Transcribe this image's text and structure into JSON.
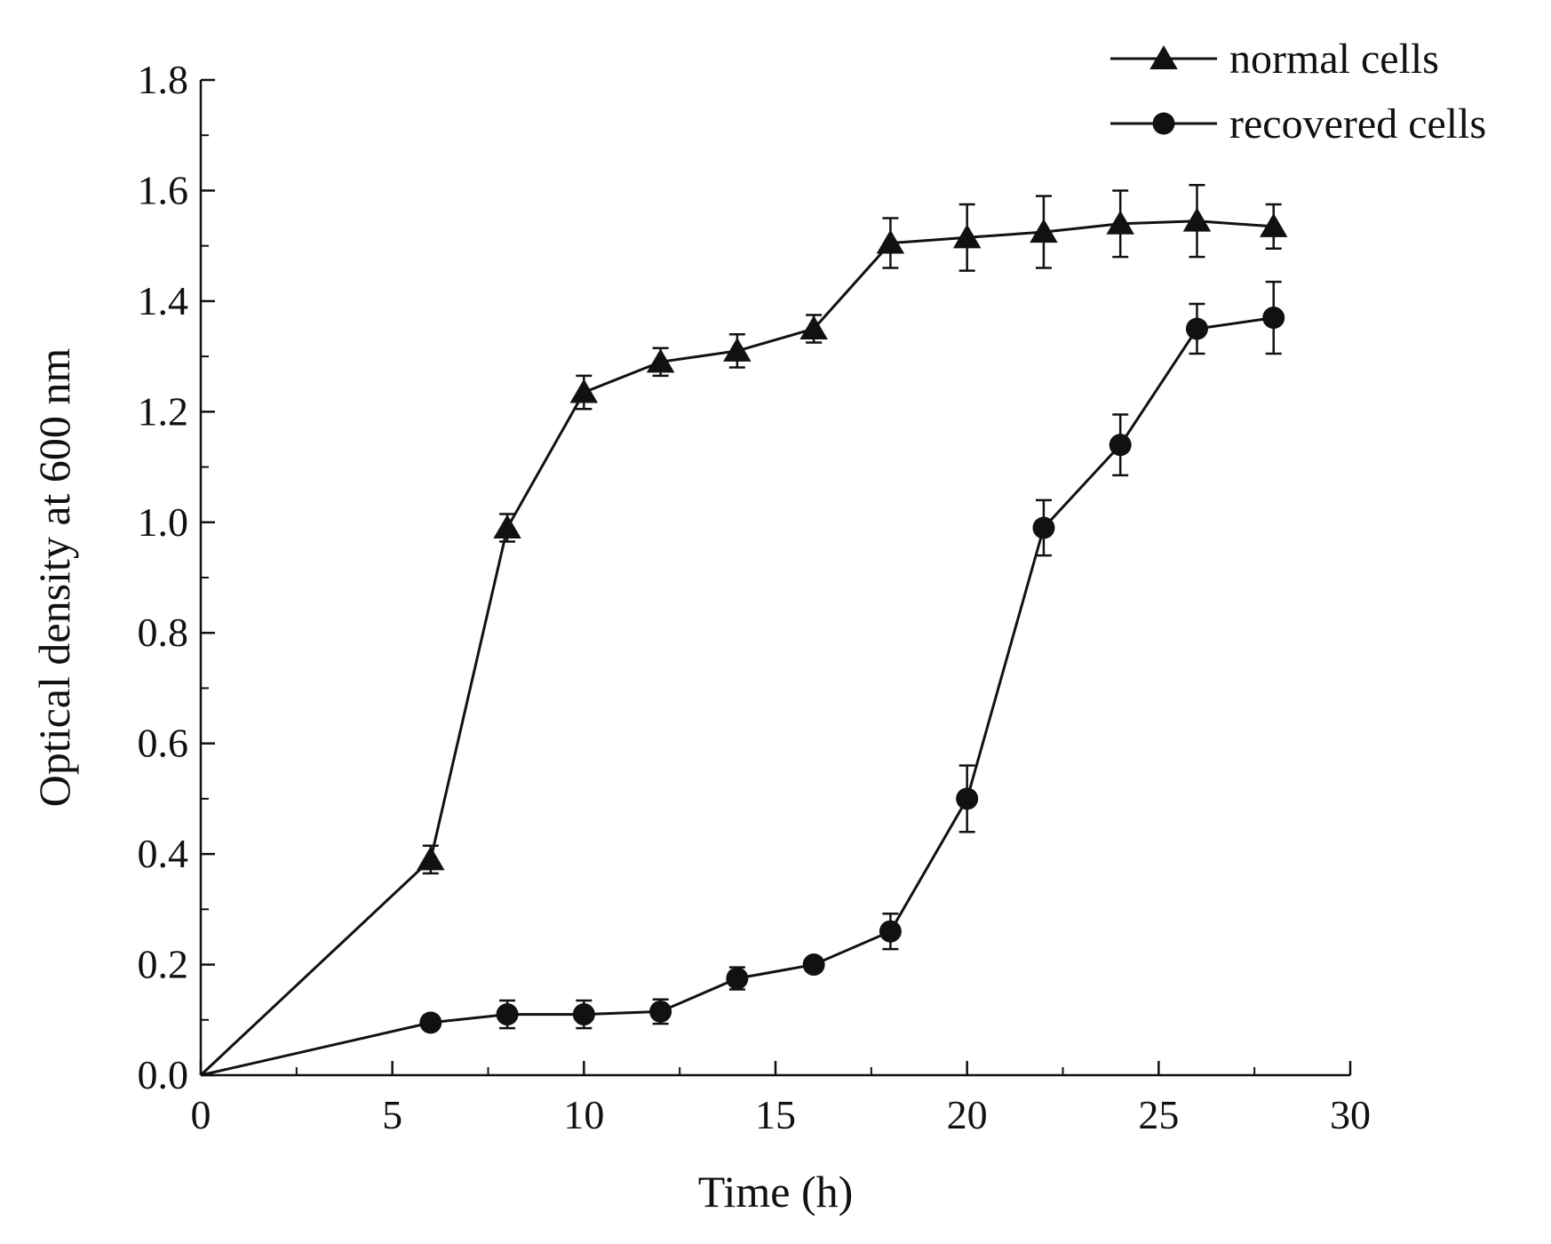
{
  "chart_data": {
    "type": "line",
    "title": "",
    "xlabel": "Time (h)",
    "ylabel": "Optical density at 600 nm",
    "xlim": [
      0,
      30
    ],
    "ylim": [
      0,
      1.8
    ],
    "xticks": [
      0,
      5,
      10,
      15,
      20,
      25,
      30
    ],
    "xtick_labels": [
      "0",
      "5",
      "10",
      "15",
      "20",
      "25",
      "30"
    ],
    "yticks": [
      0.0,
      0.2,
      0.4,
      0.6,
      0.8,
      1.0,
      1.2,
      1.4,
      1.6,
      1.8
    ],
    "ytick_labels": [
      "0.0",
      "0.2",
      "0.4",
      "0.6",
      "0.8",
      "1.0",
      "1.2",
      "1.4",
      "1.6",
      "1.8"
    ],
    "grid": false,
    "legend_position": "top-right",
    "series": [
      {
        "name": "normal cells",
        "marker": "triangle",
        "color": "#111111",
        "x": [
          0,
          6,
          8,
          10,
          12,
          14,
          16,
          18,
          20,
          22,
          24,
          26,
          28
        ],
        "y": [
          0,
          0.39,
          0.99,
          1.235,
          1.29,
          1.31,
          1.35,
          1.505,
          1.515,
          1.525,
          1.54,
          1.545,
          1.535
        ],
        "err": [
          null,
          0.025,
          0.025,
          0.03,
          0.025,
          0.03,
          0.025,
          0.045,
          0.06,
          0.065,
          0.06,
          0.065,
          0.04
        ]
      },
      {
        "name": "recovered cells",
        "marker": "circle",
        "color": "#111111",
        "x": [
          0,
          6,
          8,
          10,
          12,
          14,
          16,
          18,
          20,
          22,
          24,
          26,
          28
        ],
        "y": [
          0,
          0.095,
          0.11,
          0.11,
          0.115,
          0.175,
          0.2,
          0.26,
          0.5,
          0.99,
          1.14,
          1.35,
          1.37
        ],
        "err": [
          null,
          0.012,
          0.025,
          0.025,
          0.022,
          0.02,
          0.012,
          0.032,
          0.06,
          0.05,
          0.055,
          0.045,
          0.065
        ]
      }
    ]
  }
}
